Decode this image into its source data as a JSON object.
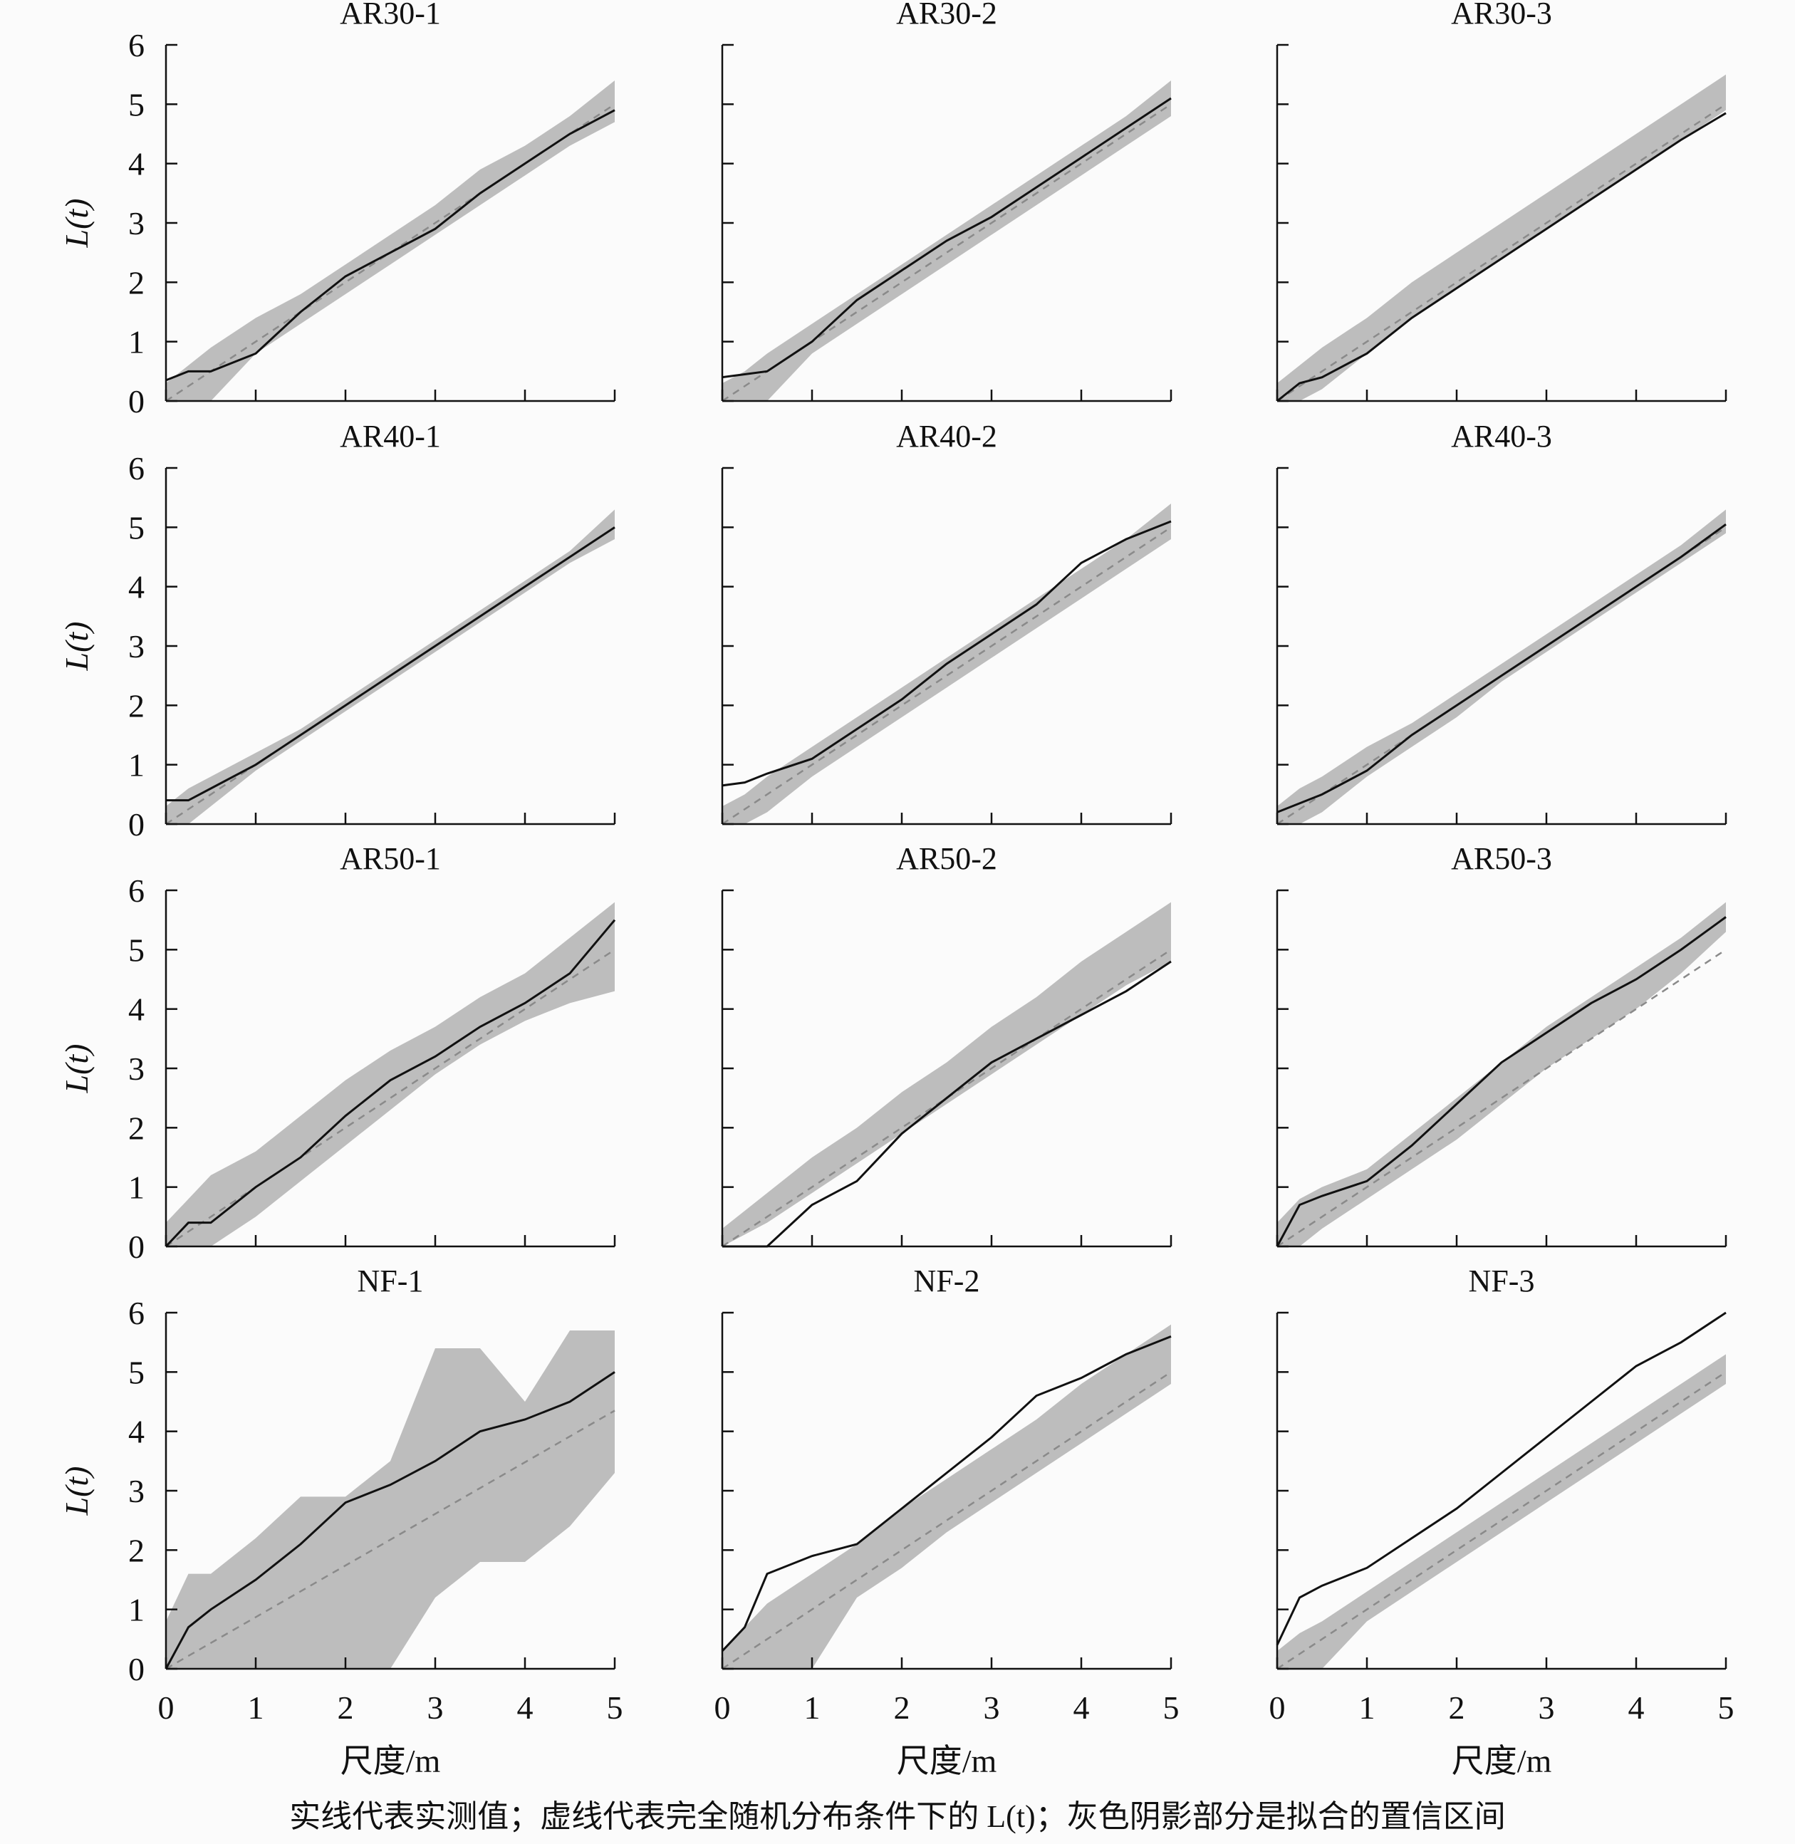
{
  "chart_data": {
    "type": "line",
    "caption": "实线代表实测值；虚线代表完全随机分布条件下的 L(t)；灰色阴影部分是拟合的置信区间",
    "xlabel": "尺度/m",
    "ylabel": "L(t)",
    "xlim": [
      0,
      5
    ],
    "ylim": [
      0,
      6
    ],
    "xticks": [
      "0",
      "1",
      "2",
      "3",
      "4",
      "5"
    ],
    "yticks": [
      "0",
      "1",
      "2",
      "3",
      "4",
      "5",
      "6"
    ],
    "x": [
      0,
      0.25,
      0.5,
      1,
      1.5,
      2,
      2.5,
      3,
      3.5,
      4,
      4.5,
      5
    ],
    "colors": {
      "observed": "#111111",
      "csr": "#8a8a8a",
      "envelope": "#bdbdbd"
    },
    "panels": [
      {
        "title": "AR30-1",
        "csr_end": 5,
        "observed": [
          0.35,
          0.5,
          0.5,
          0.8,
          1.5,
          2.1,
          2.5,
          2.9,
          3.5,
          4.0,
          4.5,
          4.9
        ],
        "lower": [
          0,
          0,
          0,
          0.8,
          1.3,
          1.8,
          2.3,
          2.8,
          3.3,
          3.8,
          4.3,
          4.7
        ],
        "upper": [
          0.3,
          0.6,
          0.9,
          1.4,
          1.8,
          2.3,
          2.8,
          3.3,
          3.9,
          4.3,
          4.8,
          5.4
        ]
      },
      {
        "title": "AR30-2",
        "csr_end": 5,
        "observed": [
          0.4,
          0.45,
          0.5,
          1.0,
          1.7,
          2.2,
          2.7,
          3.1,
          3.6,
          4.1,
          4.6,
          5.1
        ],
        "lower": [
          0,
          0,
          0,
          0.8,
          1.3,
          1.8,
          2.3,
          2.8,
          3.3,
          3.8,
          4.3,
          4.8
        ],
        "upper": [
          0.3,
          0.5,
          0.8,
          1.3,
          1.8,
          2.3,
          2.8,
          3.3,
          3.8,
          4.3,
          4.8,
          5.4
        ]
      },
      {
        "title": "AR30-3",
        "csr_end": 5,
        "observed": [
          0,
          0.3,
          0.4,
          0.8,
          1.4,
          1.9,
          2.4,
          2.9,
          3.4,
          3.9,
          4.4,
          4.85
        ],
        "lower": [
          0,
          0,
          0.2,
          0.8,
          1.4,
          1.9,
          2.4,
          2.9,
          3.4,
          3.9,
          4.4,
          4.9
        ],
        "upper": [
          0.3,
          0.6,
          0.9,
          1.4,
          2.0,
          2.5,
          3.0,
          3.5,
          4.0,
          4.5,
          5.0,
          5.5
        ]
      },
      {
        "title": "AR40-1",
        "csr_end": 5,
        "observed": [
          0.4,
          0.4,
          0.6,
          1.0,
          1.5,
          2.0,
          2.5,
          3.0,
          3.5,
          4.0,
          4.5,
          5.0
        ],
        "lower": [
          0,
          0,
          0.3,
          0.9,
          1.4,
          1.9,
          2.4,
          2.9,
          3.4,
          3.9,
          4.4,
          4.8
        ],
        "upper": [
          0.3,
          0.6,
          0.8,
          1.2,
          1.6,
          2.1,
          2.6,
          3.1,
          3.6,
          4.1,
          4.6,
          5.3
        ]
      },
      {
        "title": "AR40-2",
        "csr_end": 5,
        "observed": [
          0.65,
          0.7,
          0.85,
          1.1,
          1.6,
          2.1,
          2.7,
          3.2,
          3.7,
          4.4,
          4.8,
          5.1
        ],
        "lower": [
          0,
          0,
          0.2,
          0.8,
          1.3,
          1.8,
          2.3,
          2.8,
          3.3,
          3.8,
          4.3,
          4.8
        ],
        "upper": [
          0.3,
          0.5,
          0.8,
          1.3,
          1.8,
          2.3,
          2.8,
          3.3,
          3.8,
          4.3,
          4.8,
          5.4
        ]
      },
      {
        "title": "AR40-3",
        "csr_end": 5,
        "observed": [
          0.2,
          0.35,
          0.5,
          0.9,
          1.5,
          2.0,
          2.5,
          3.0,
          3.5,
          4.0,
          4.5,
          5.05
        ],
        "lower": [
          0,
          0,
          0.2,
          0.8,
          1.3,
          1.8,
          2.4,
          2.9,
          3.4,
          3.9,
          4.4,
          4.9
        ],
        "upper": [
          0.3,
          0.6,
          0.8,
          1.3,
          1.7,
          2.2,
          2.7,
          3.2,
          3.7,
          4.2,
          4.7,
          5.3
        ]
      },
      {
        "title": "AR50-1",
        "csr_end": 5,
        "observed": [
          0,
          0.4,
          0.4,
          1.0,
          1.5,
          2.2,
          2.8,
          3.2,
          3.7,
          4.1,
          4.6,
          5.5
        ],
        "lower": [
          0,
          0,
          0,
          0.5,
          1.1,
          1.7,
          2.3,
          2.9,
          3.4,
          3.8,
          4.1,
          4.3
        ],
        "upper": [
          0.4,
          0.8,
          1.2,
          1.6,
          2.2,
          2.8,
          3.3,
          3.7,
          4.2,
          4.6,
          5.2,
          5.8
        ]
      },
      {
        "title": "AR50-2",
        "csr_end": 5,
        "observed": [
          0,
          0,
          0,
          0.7,
          1.1,
          1.9,
          2.5,
          3.1,
          3.5,
          3.9,
          4.3,
          4.8
        ],
        "lower": [
          0,
          0.2,
          0.4,
          0.9,
          1.4,
          1.9,
          2.4,
          2.9,
          3.4,
          3.9,
          4.4,
          4.8
        ],
        "upper": [
          0.3,
          0.6,
          0.9,
          1.5,
          2.0,
          2.6,
          3.1,
          3.7,
          4.2,
          4.8,
          5.3,
          5.8
        ]
      },
      {
        "title": "AR50-3",
        "csr_end": 5,
        "observed": [
          0,
          0.7,
          0.85,
          1.1,
          1.7,
          2.4,
          3.1,
          3.6,
          4.1,
          4.5,
          5.0,
          5.55
        ],
        "lower": [
          0,
          0,
          0.3,
          0.8,
          1.3,
          1.8,
          2.4,
          3.0,
          3.5,
          4.0,
          4.6,
          5.3
        ],
        "upper": [
          0.4,
          0.8,
          1.0,
          1.3,
          1.9,
          2.5,
          3.1,
          3.7,
          4.2,
          4.7,
          5.2,
          5.8
        ]
      },
      {
        "title": "NF-1",
        "csr_end": 4.35,
        "observed": [
          0,
          0.7,
          1.0,
          1.5,
          2.1,
          2.8,
          3.1,
          3.5,
          4.0,
          4.2,
          4.5,
          5.0
        ],
        "lower": [
          0,
          0,
          0,
          0,
          0,
          0,
          0,
          1.2,
          1.8,
          1.8,
          2.4,
          3.3
        ],
        "upper": [
          0.8,
          1.6,
          1.6,
          2.2,
          2.9,
          2.9,
          3.5,
          5.4,
          5.4,
          4.5,
          5.7,
          5.7
        ]
      },
      {
        "title": "NF-2",
        "csr_end": 5,
        "observed": [
          0.3,
          0.7,
          1.6,
          1.9,
          2.1,
          2.7,
          3.3,
          3.9,
          4.6,
          4.9,
          5.3,
          5.6
        ],
        "lower": [
          0,
          0,
          0,
          0,
          1.2,
          1.7,
          2.3,
          2.8,
          3.3,
          3.8,
          4.3,
          4.8
        ],
        "upper": [
          0.3,
          0.7,
          1.1,
          1.6,
          2.1,
          2.7,
          3.2,
          3.7,
          4.2,
          4.8,
          5.3,
          5.8
        ]
      },
      {
        "title": "NF-3",
        "csr_end": 5,
        "observed": [
          0.4,
          1.2,
          1.4,
          1.7,
          2.2,
          2.7,
          3.3,
          3.9,
          4.5,
          5.1,
          5.5,
          6.0
        ],
        "lower": [
          0,
          0,
          0,
          0.8,
          1.3,
          1.8,
          2.3,
          2.8,
          3.3,
          3.8,
          4.3,
          4.8
        ],
        "upper": [
          0.3,
          0.6,
          0.8,
          1.3,
          1.8,
          2.3,
          2.8,
          3.3,
          3.8,
          4.3,
          4.8,
          5.3
        ]
      }
    ]
  }
}
